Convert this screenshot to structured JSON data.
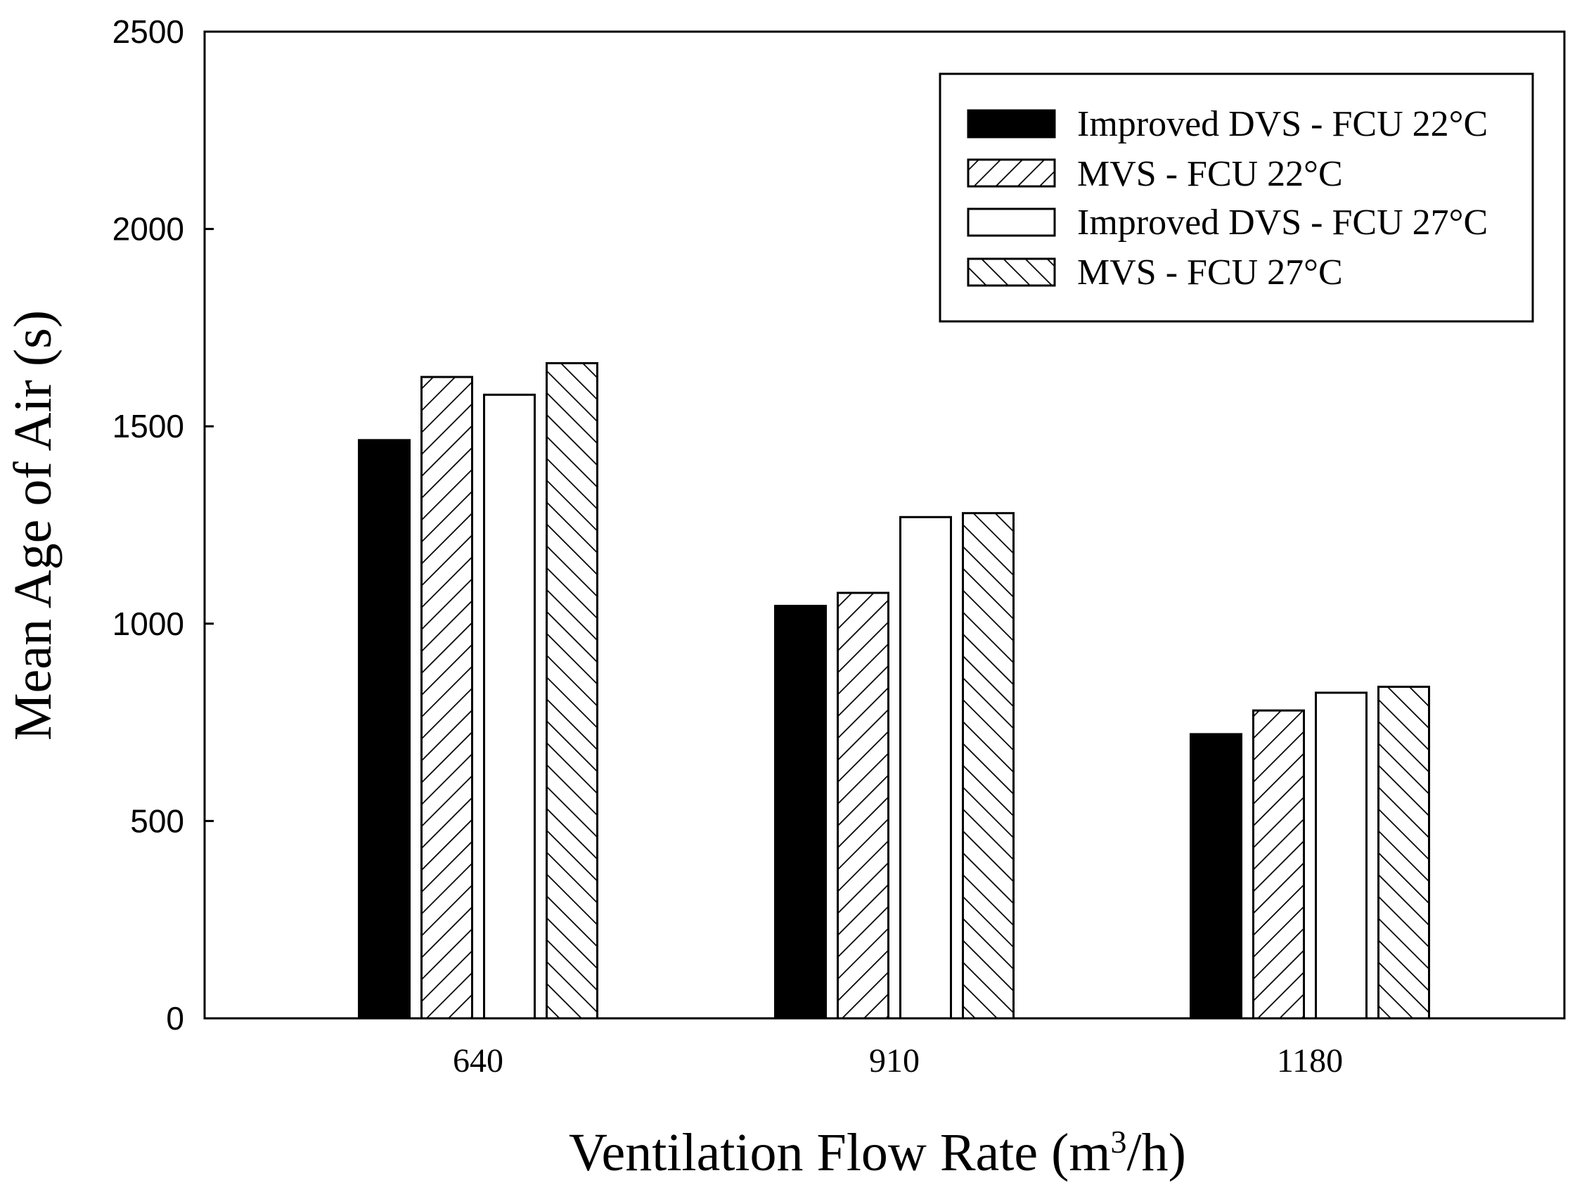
{
  "chart_data": {
    "type": "bar",
    "title": "",
    "xlabel_parts": [
      "Ventilation Flow Rate (m",
      "3",
      "/h)"
    ],
    "ylabel": "Mean Age of Air (s)",
    "categories": [
      "640",
      "910",
      "1180"
    ],
    "ylim": [
      0,
      2500
    ],
    "yticks": [
      0,
      500,
      1000,
      1500,
      2000,
      2500
    ],
    "ytick_labels": [
      "0",
      "500",
      "1000",
      "1500",
      "2000",
      "2500"
    ],
    "legend_position": "top-right",
    "grid": false,
    "series": [
      {
        "name": "Improved DVS - FCU 22°C",
        "pattern": "solid-black",
        "values": [
          1465,
          1045,
          720
        ]
      },
      {
        "name": "MVS - FCU 22°C",
        "pattern": "hatch-forward",
        "values": [
          1625,
          1078,
          780
        ]
      },
      {
        "name": "Improved DVS - FCU 27°C",
        "pattern": "white",
        "values": [
          1580,
          1270,
          825
        ]
      },
      {
        "name": "MVS - FCU 27°C",
        "pattern": "hatch-backward",
        "values": [
          1660,
          1280,
          840
        ]
      }
    ]
  }
}
